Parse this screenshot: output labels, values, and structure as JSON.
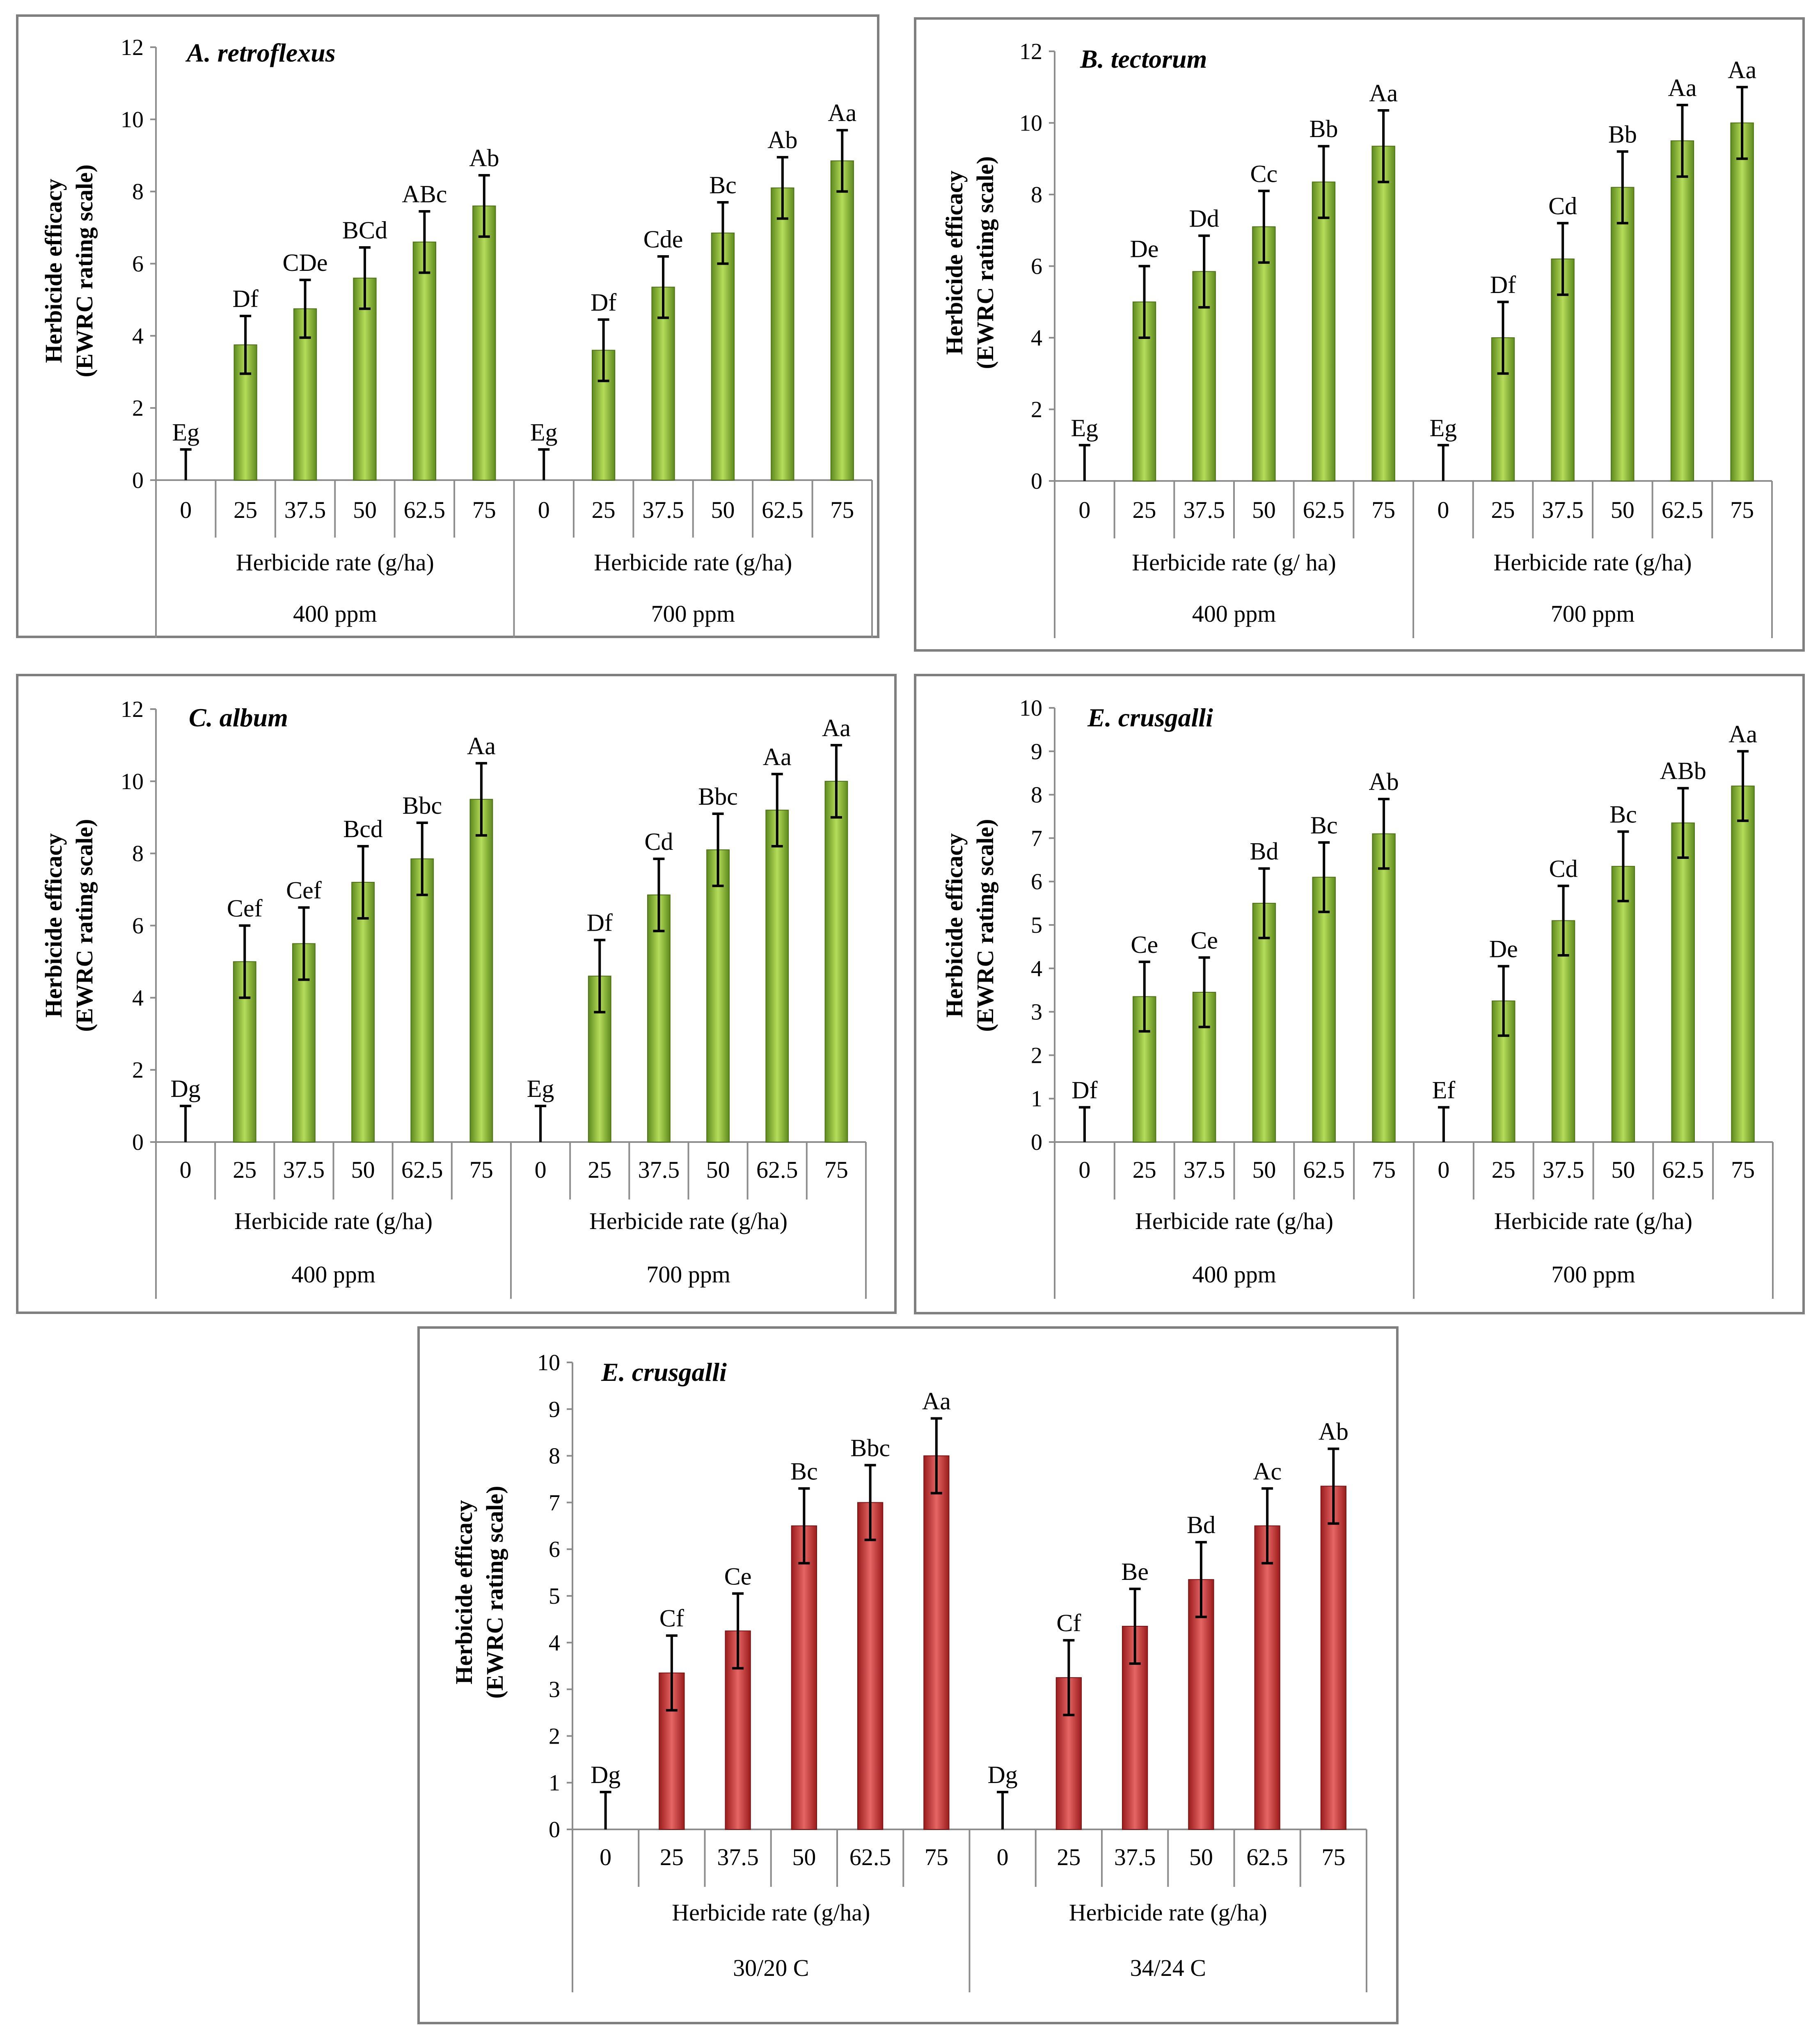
{
  "colors": {
    "green_dark": "#5f8a1e",
    "green_light": "#b5dc5a",
    "red_dark": "#9a1c1c",
    "red_light": "#e66565"
  },
  "chart_data": [
    {
      "type": "bar",
      "title": "A. retroflexus",
      "ylabel_line1": "Herbicide efficacy",
      "ylabel_line2": "(EWRC  rating scale)",
      "ylim": [
        0,
        12
      ],
      "yticks": [
        0,
        2,
        4,
        6,
        8,
        10,
        12
      ],
      "bar_color": "green",
      "groups": [
        {
          "label": "400 ppm",
          "xlabel": "Herbicide rate (g/ha)",
          "categories": [
            "0",
            "25",
            "37.5",
            "50",
            "62.5",
            "75"
          ],
          "values": [
            0,
            3.75,
            4.75,
            5.6,
            6.6,
            7.6
          ],
          "errors": [
            0.85,
            0.8,
            0.8,
            0.85,
            0.85,
            0.85
          ],
          "letters": [
            "Eg",
            "Df",
            "CDe",
            "BCd",
            "ABc",
            "Ab"
          ]
        },
        {
          "label": "700 ppm",
          "xlabel": "Herbicide rate (g/ha)",
          "categories": [
            "0",
            "25",
            "37.5",
            "50",
            "62.5",
            "75"
          ],
          "values": [
            0,
            3.6,
            5.35,
            6.85,
            8.1,
            8.85
          ],
          "errors": [
            0.85,
            0.85,
            0.85,
            0.85,
            0.85,
            0.85
          ],
          "letters": [
            "Eg",
            "Df",
            "Cde",
            "Bc",
            "Ab",
            "Aa"
          ]
        }
      ]
    },
    {
      "type": "bar",
      "title": "B. tectorum",
      "ylabel_line1": "Herbicide efficacy",
      "ylabel_line2": "(EWRC  rating scale)",
      "ylim": [
        0,
        12
      ],
      "yticks": [
        0,
        2,
        4,
        6,
        8,
        10,
        12
      ],
      "bar_color": "green",
      "groups": [
        {
          "label": "400 ppm",
          "xlabel": "Herbicide rate (g/ ha)",
          "categories": [
            "0",
            "25",
            "37.5",
            "50",
            "62.5",
            "75"
          ],
          "values": [
            0,
            5.0,
            5.85,
            7.1,
            8.35,
            9.35
          ],
          "errors": [
            1.0,
            1.0,
            1.0,
            1.0,
            1.0,
            1.0
          ],
          "letters": [
            "Eg",
            "De",
            "Dd",
            "Cc",
            "Bb",
            "Aa"
          ]
        },
        {
          "label": "700 ppm",
          "xlabel": "Herbicide rate (g/ha)",
          "categories": [
            "0",
            "25",
            "37.5",
            "50",
            "62.5",
            "75"
          ],
          "values": [
            0,
            4.0,
            6.2,
            8.2,
            9.5,
            10.0
          ],
          "errors": [
            1.0,
            1.0,
            1.0,
            1.0,
            1.0,
            1.0
          ],
          "letters": [
            "Eg",
            "Df",
            "Cd",
            "Bb",
            "Aa",
            "Aa"
          ]
        }
      ]
    },
    {
      "type": "bar",
      "title": "C. album",
      "ylabel_line1": "Herbicide efficacy",
      "ylabel_line2": "(EWRC  rating scale)",
      "ylim": [
        0,
        12
      ],
      "yticks": [
        0,
        2,
        4,
        6,
        8,
        10,
        12
      ],
      "bar_color": "green",
      "groups": [
        {
          "label": "400 ppm",
          "xlabel": "Herbicide rate (g/ha)",
          "categories": [
            "0",
            "25",
            "37.5",
            "50",
            "62.5",
            "75"
          ],
          "values": [
            0,
            5.0,
            5.5,
            7.2,
            7.85,
            9.5
          ],
          "errors": [
            1.0,
            1.0,
            1.0,
            1.0,
            1.0,
            1.0
          ],
          "letters": [
            "Dg",
            "Cef",
            "Cef",
            "Bcd",
            "Bbc",
            "Aa"
          ]
        },
        {
          "label": "700 ppm",
          "xlabel": "Herbicide rate (g/ha)",
          "categories": [
            "0",
            "25",
            "37.5",
            "50",
            "62.5",
            "75"
          ],
          "values": [
            0,
            4.6,
            6.85,
            8.1,
            9.2,
            10.0
          ],
          "errors": [
            1.0,
            1.0,
            1.0,
            1.0,
            1.0,
            1.0
          ],
          "letters": [
            "Eg",
            "Df",
            "Cd",
            "Bbc",
            "Aa",
            "Aa"
          ]
        }
      ]
    },
    {
      "type": "bar",
      "title": "E. crusgalli",
      "ylabel_line1": "Herbicide efficacy",
      "ylabel_line2": "(EWRC  rating scale)",
      "ylim": [
        0,
        10
      ],
      "yticks": [
        0,
        1,
        2,
        3,
        4,
        5,
        6,
        7,
        8,
        9,
        10
      ],
      "bar_color": "green",
      "groups": [
        {
          "label": "400 ppm",
          "xlabel": "Herbicide rate (g/ha)",
          "categories": [
            "0",
            "25",
            "37.5",
            "50",
            "62.5",
            "75"
          ],
          "values": [
            0,
            3.35,
            3.45,
            5.5,
            6.1,
            7.1
          ],
          "errors": [
            0.8,
            0.8,
            0.8,
            0.8,
            0.8,
            0.8
          ],
          "letters": [
            "Df",
            "Ce",
            "Ce",
            "Bd",
            "Bc",
            "Ab"
          ]
        },
        {
          "label": "700 ppm",
          "xlabel": "Herbicide rate (g/ha)",
          "categories": [
            "0",
            "25",
            "37.5",
            "50",
            "62.5",
            "75"
          ],
          "values": [
            0,
            3.25,
            5.1,
            6.35,
            7.35,
            8.2
          ],
          "errors": [
            0.8,
            0.8,
            0.8,
            0.8,
            0.8,
            0.8
          ],
          "letters": [
            "Ef",
            "De",
            "Cd",
            "Bc",
            "ABb",
            "Aa"
          ]
        }
      ]
    },
    {
      "type": "bar",
      "title": "E. crusgalli",
      "ylabel_line1": "Herbicide efficacy",
      "ylabel_line2": "(EWRC  rating scale)",
      "ylim": [
        0,
        10
      ],
      "yticks": [
        0,
        1,
        2,
        3,
        4,
        5,
        6,
        7,
        8,
        9,
        10
      ],
      "bar_color": "red",
      "groups": [
        {
          "label": "30/20 C",
          "xlabel": "Herbicide rate (g/ha)",
          "categories": [
            "0",
            "25",
            "37.5",
            "50",
            "62.5",
            "75"
          ],
          "values": [
            0,
            3.35,
            4.25,
            6.5,
            7.0,
            8.0
          ],
          "errors": [
            0.8,
            0.8,
            0.8,
            0.8,
            0.8,
            0.8
          ],
          "letters": [
            "Dg",
            "Cf",
            "Ce",
            "Bc",
            "Bbc",
            "Aa"
          ]
        },
        {
          "label": "34/24 C",
          "xlabel": "Herbicide rate (g/ha)",
          "categories": [
            "0",
            "25",
            "37.5",
            "50",
            "62.5",
            "75"
          ],
          "values": [
            0,
            3.25,
            4.35,
            5.35,
            6.5,
            7.35
          ],
          "errors": [
            0.8,
            0.8,
            0.8,
            0.8,
            0.8,
            0.8
          ],
          "letters": [
            "Dg",
            "Cf",
            "Be",
            "Bd",
            "Ac",
            "Ab"
          ]
        }
      ]
    }
  ]
}
